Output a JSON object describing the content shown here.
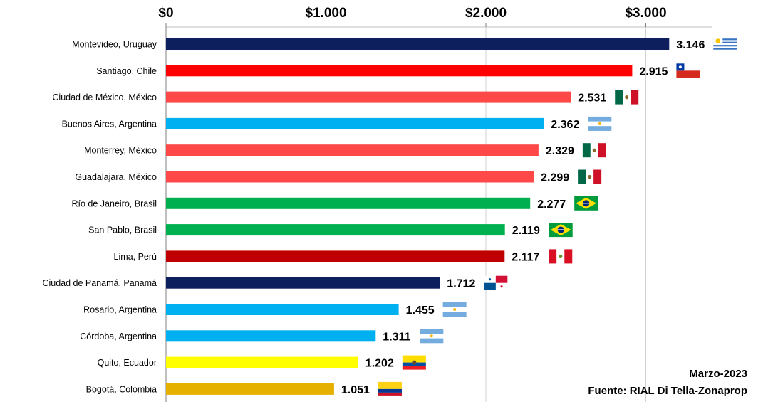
{
  "chart_data": {
    "type": "bar",
    "orientation": "horizontal",
    "xlim": [
      0,
      3500
    ],
    "ticks": [
      {
        "value": 0,
        "label": "$0"
      },
      {
        "value": 1000,
        "label": "$1.000"
      },
      {
        "value": 2000,
        "label": "$2.000"
      },
      {
        "value": 3000,
        "label": "$3.000"
      }
    ],
    "grid": "vertical",
    "categories": [
      "Montevideo, Uruguay",
      "Santiago, Chile",
      "Ciudad de México, México",
      "Buenos Aires, Argentina",
      "Monterrey, México",
      "Guadalajara, México",
      "Río de Janeiro, Brasil",
      "San Pablo, Brasil",
      "Lima, Perú",
      "Ciudad de Panamá, Panamá",
      "Rosario, Argentina",
      "Córdoba, Argentina",
      "Quito, Ecuador",
      "Bogotá, Colombia"
    ],
    "values": [
      3146,
      2915,
      2531,
      2362,
      2329,
      2299,
      2277,
      2119,
      2117,
      1712,
      1455,
      1311,
      1202,
      1051
    ],
    "value_labels": [
      "3.146",
      "2.915",
      "2.531",
      "2.362",
      "2.329",
      "2.299",
      "2.277",
      "2.119",
      "2.117",
      "1.712",
      "1.455",
      "1.311",
      "1.202",
      "1.051"
    ],
    "bar_colors": [
      "#0d1f5c",
      "#ff0000",
      "#ff4848",
      "#00b0f0",
      "#ff4848",
      "#ff4848",
      "#00b050",
      "#00b050",
      "#c00000",
      "#0d1f5c",
      "#00b0f0",
      "#00b0f0",
      "#ffff00",
      "#e6b000"
    ],
    "flags": [
      "uruguay",
      "chile",
      "mexico",
      "argentina",
      "mexico",
      "mexico",
      "brazil",
      "brazil",
      "peru",
      "panama",
      "argentina",
      "argentina",
      "ecuador",
      "colombia"
    ]
  },
  "notes": {
    "date": "Marzo-2023",
    "source": "Fuente: RIAL Di Tella-Zonaprop"
  }
}
